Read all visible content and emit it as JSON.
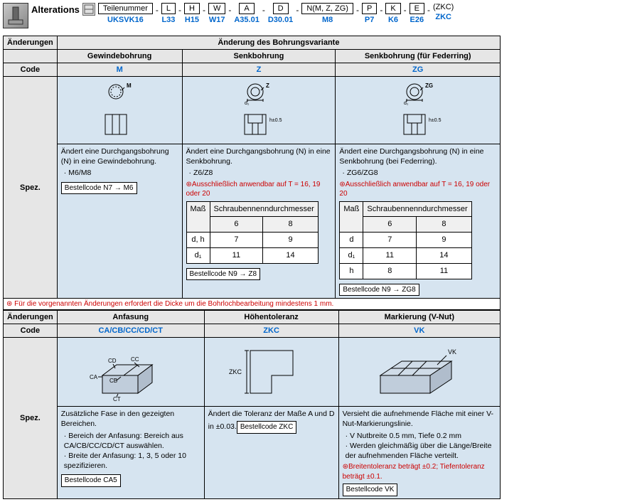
{
  "header": {
    "alterations_label": "Alterations",
    "parts": [
      {
        "label": "Teilenummer",
        "value": "UKSVK16"
      },
      {
        "label": "L",
        "value": "L33"
      },
      {
        "label": "H",
        "value": "H15"
      },
      {
        "label": "W",
        "value": "W17"
      },
      {
        "label": "A",
        "value": "A35.01"
      },
      {
        "label": "D",
        "value": "D30.01"
      },
      {
        "label": "N(M, Z, ZG)",
        "value": "M8"
      },
      {
        "label": "P",
        "value": "P7"
      },
      {
        "label": "K",
        "value": "K6"
      },
      {
        "label": "E",
        "value": "E26"
      }
    ],
    "tail_paren": "(ZKC)",
    "tail_value": "ZKC"
  },
  "section1": {
    "row_aenderungen": "Änderungen",
    "header_title": "Änderung des Bohrungsvariante",
    "row_code": "Code",
    "row_spez": "Spez.",
    "cols": [
      {
        "title": "Gewindebohrung",
        "code": "M",
        "svg_label": "M",
        "desc": "Ändert eine Durchgangsbohrung (N) in eine Gewindebohrung.",
        "bullets": [
          "M6/M8"
        ],
        "red_note": "",
        "inner_table": null,
        "order": "Bestellcode  N7 → M6"
      },
      {
        "title": "Senkbohrung",
        "code": "Z",
        "svg_label": "Z",
        "desc": "Ändert eine Durchgangsbohrung (N) in eine Senkbohrung.",
        "bullets": [
          "Z6/Z8"
        ],
        "red_note": "⊛Ausschließlich anwendbar auf T = 16, 19 oder 20",
        "inner_table": {
          "header": [
            "Maß",
            "Schraubennenndurchmesser"
          ],
          "subheader": [
            "",
            "6",
            "8"
          ],
          "rows": [
            [
              "d, h",
              "7",
              "9"
            ],
            [
              "d₁",
              "11",
              "14"
            ]
          ]
        },
        "order": "Bestellcode  N9 → Z8"
      },
      {
        "title": "Senkbohrung (für Federring)",
        "code": "ZG",
        "svg_label": "ZG",
        "desc": "Ändert eine Durchgangsbohrung (N) in eine Senkbohrung (bei Federring).",
        "bullets": [
          "ZG6/ZG8"
        ],
        "red_note": "⊛Ausschließlich anwendbar auf T = 16, 19 oder 20",
        "inner_table": {
          "header": [
            "Maß",
            "Schraubennenndurchmesser"
          ],
          "subheader": [
            "",
            "6",
            "8"
          ],
          "rows": [
            [
              "d",
              "7",
              "9"
            ],
            [
              "d₁",
              "11",
              "14"
            ],
            [
              "h",
              "8",
              "11"
            ]
          ]
        },
        "order": "Bestellcode  N9 → ZG8"
      }
    ]
  },
  "mid_note": "⊛ Für die vorgenannten Änderungen erfordert die Dicke um die Bohrlochbearbeitung mindestens 1 mm.",
  "section2": {
    "row_aenderungen": "Änderungen",
    "row_code": "Code",
    "row_spez": "Spez.",
    "cols": [
      {
        "title": "Anfasung",
        "code": "CA/CB/CC/CD/CT",
        "labels": [
          "CD",
          "CC",
          "CA",
          "CB",
          "CT"
        ],
        "desc": "Zusätzliche Fase in den gezeigten Bereichen.",
        "bullets": [
          "Bereich der Anfasung: Bereich aus CA/CB/CC/CD/CT auswählen.",
          "Breite der Anfasung: 1, 3, 5 oder 10 spezifizieren."
        ],
        "red_note": "",
        "order": "Bestellcode  CA5"
      },
      {
        "title": "Höhentoleranz",
        "code": "ZKC",
        "labels": [
          "ZKC"
        ],
        "desc": "Ändert die Toleranz der Maße A und D in ±0.03.",
        "bullets": [],
        "red_note": "",
        "order": "Bestellcode  ZKC"
      },
      {
        "title": "Markierung (V-Nut)",
        "code": "VK",
        "labels": [
          "VK"
        ],
        "desc": "Versieht die aufnehmende Fläche mit einer V-Nut-Markierungslinie.",
        "bullets": [
          "V Nutbreite 0.5 mm, Tiefe 0.2 mm",
          "Werden gleichmäßig über die Länge/Breite der aufnehmenden Fläche verteilt."
        ],
        "red_note": "⊛Breitentoleranz beträgt ±0.2; Tiefentoleranz beträgt ±0.1.",
        "order": "Bestellcode  VK"
      }
    ]
  },
  "colors": {
    "link": "#0066cc",
    "header_bg": "#e6e6e6",
    "spec_bg": "#d6e4f0",
    "red": "#cc0000"
  }
}
